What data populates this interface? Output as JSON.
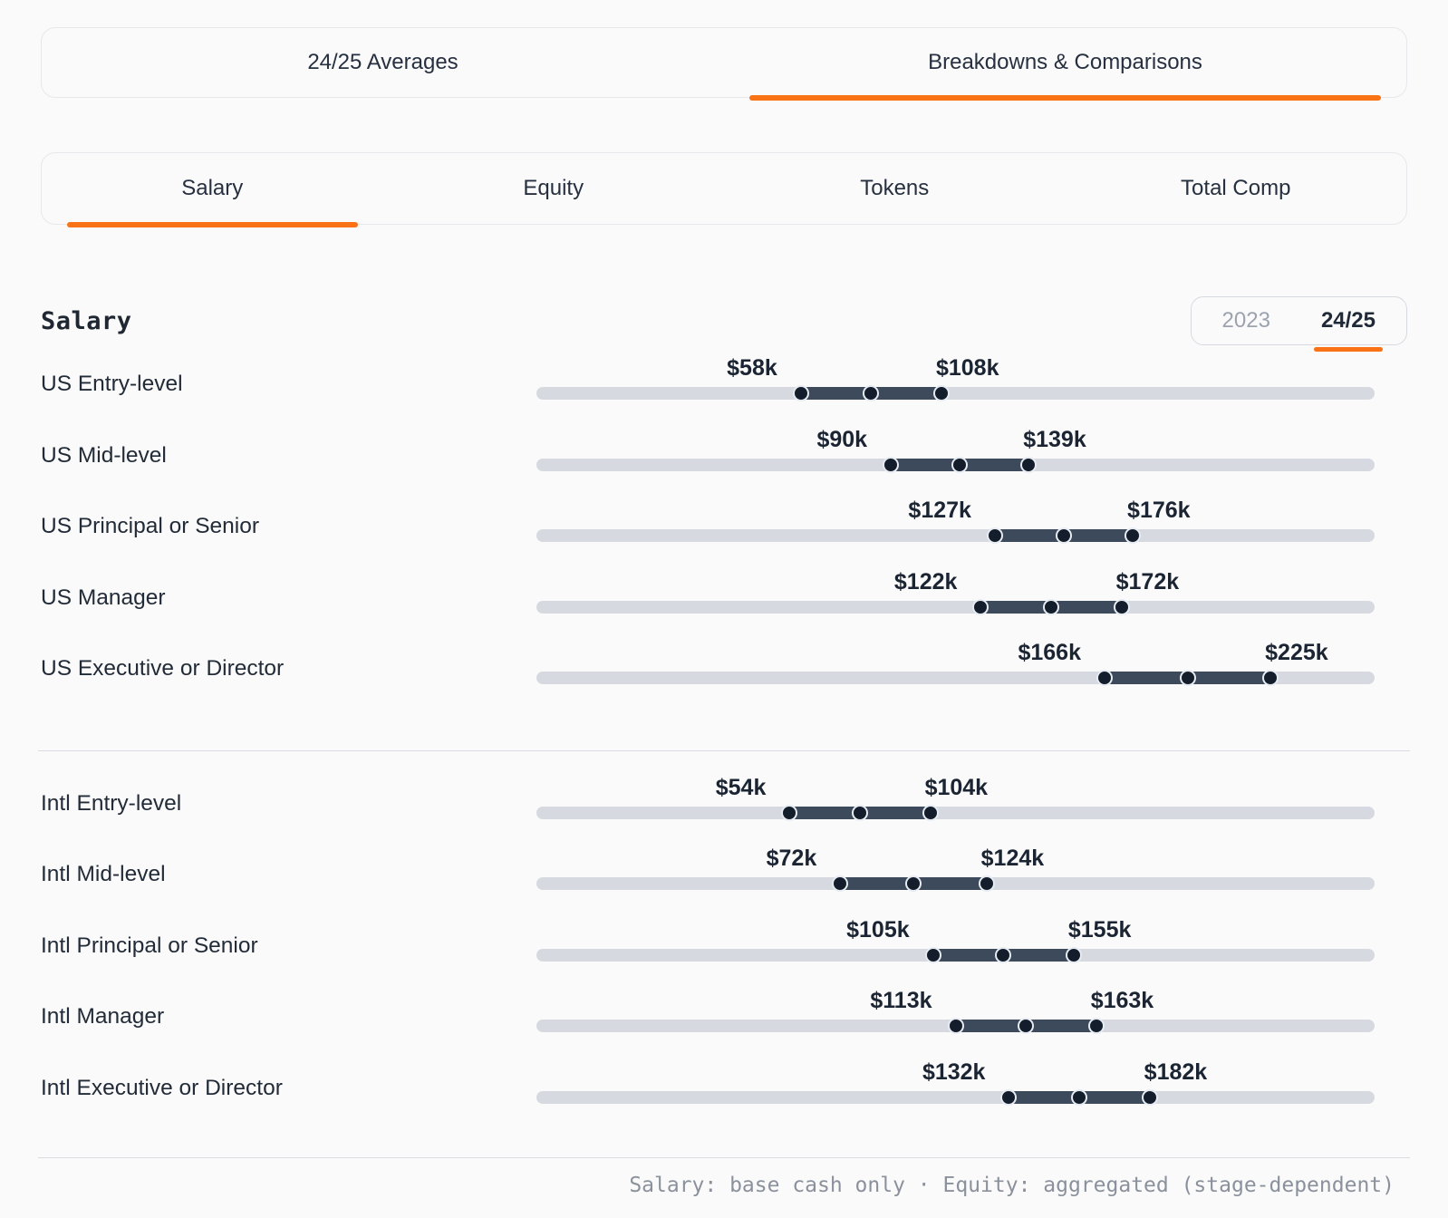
{
  "tabs_primary": {
    "items": [
      {
        "label": "24/25 Averages",
        "active": false
      },
      {
        "label": "Breakdowns & Comparisons",
        "active": true
      }
    ]
  },
  "tabs_secondary": {
    "items": [
      {
        "label": "Salary",
        "active": true
      },
      {
        "label": "Equity",
        "active": false
      },
      {
        "label": "Tokens",
        "active": false
      },
      {
        "label": "Total Comp",
        "active": false
      }
    ]
  },
  "section": {
    "title": "Salary"
  },
  "year_toggle": {
    "options": [
      {
        "label": "2023",
        "active": false
      },
      {
        "label": "24/25",
        "active": true
      }
    ]
  },
  "chart_data": {
    "type": "range",
    "title": "Salary",
    "unit": "USD thousands (base cash)",
    "axis": {
      "min": -36,
      "max": 262
    },
    "marker_style": "min, midpoint and max dots on each range bar",
    "legend_position": "none",
    "grid": false,
    "groups": [
      {
        "name": "US",
        "rows": [
          {
            "label": "US Entry-level",
            "min": 58,
            "max": 108,
            "min_label": "$58k",
            "max_label": "$108k"
          },
          {
            "label": "US Mid-level",
            "min": 90,
            "max": 139,
            "min_label": "$90k",
            "max_label": "$139k"
          },
          {
            "label": "US Principal or Senior",
            "min": 127,
            "max": 176,
            "min_label": "$127k",
            "max_label": "$176k"
          },
          {
            "label": "US Manager",
            "min": 122,
            "max": 172,
            "min_label": "$122k",
            "max_label": "$172k"
          },
          {
            "label": "US Executive or Director",
            "min": 166,
            "max": 225,
            "min_label": "$166k",
            "max_label": "$225k"
          }
        ]
      },
      {
        "name": "Intl",
        "rows": [
          {
            "label": "Intl Entry-level",
            "min": 54,
            "max": 104,
            "min_label": "$54k",
            "max_label": "$104k"
          },
          {
            "label": "Intl Mid-level",
            "min": 72,
            "max": 124,
            "min_label": "$72k",
            "max_label": "$124k"
          },
          {
            "label": "Intl Principal or Senior",
            "min": 105,
            "max": 155,
            "min_label": "$105k",
            "max_label": "$155k"
          },
          {
            "label": "Intl Manager",
            "min": 113,
            "max": 163,
            "min_label": "$113k",
            "max_label": "$163k"
          },
          {
            "label": "Intl Executive or Director",
            "min": 132,
            "max": 182,
            "min_label": "$132k",
            "max_label": "$182k"
          }
        ]
      }
    ]
  },
  "footer": {
    "note": "Salary: base cash only · Equity: aggregated (stage-dependent)"
  },
  "colors": {
    "accent_orange": "#f97316",
    "track": "#d6dae0",
    "range_bar": "#3c4a5c",
    "dot_fill": "#141d2b",
    "dot_ring": "#e7ecf2",
    "text_dark": "#1f2733",
    "text_muted": "#9ca3af",
    "footer_text": "#8b919c",
    "background": "#fafafa"
  }
}
